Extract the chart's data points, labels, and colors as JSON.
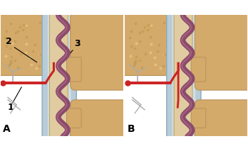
{
  "figure_label_A": "A",
  "figure_label_B": "B",
  "label_1": "1",
  "label_2": "2",
  "label_3": "3",
  "bg_color": "#ffffff",
  "fontsize_labels": 9,
  "fontsize_AB": 10,
  "dura_color": "#b8ccd8",
  "dura_edge": "#8aaabb",
  "cord_color": "#e0cca0",
  "cord_edge": "#c0a860",
  "vein_color": "#8b4a6a",
  "vein_color2": "#7a3a58",
  "bone_color": "#d4aa6a",
  "bone_edge": "#b8905a",
  "artery_color": "#cc2222",
  "vessel_gray": "#aaaaaa",
  "dot_color": "#c49a55"
}
